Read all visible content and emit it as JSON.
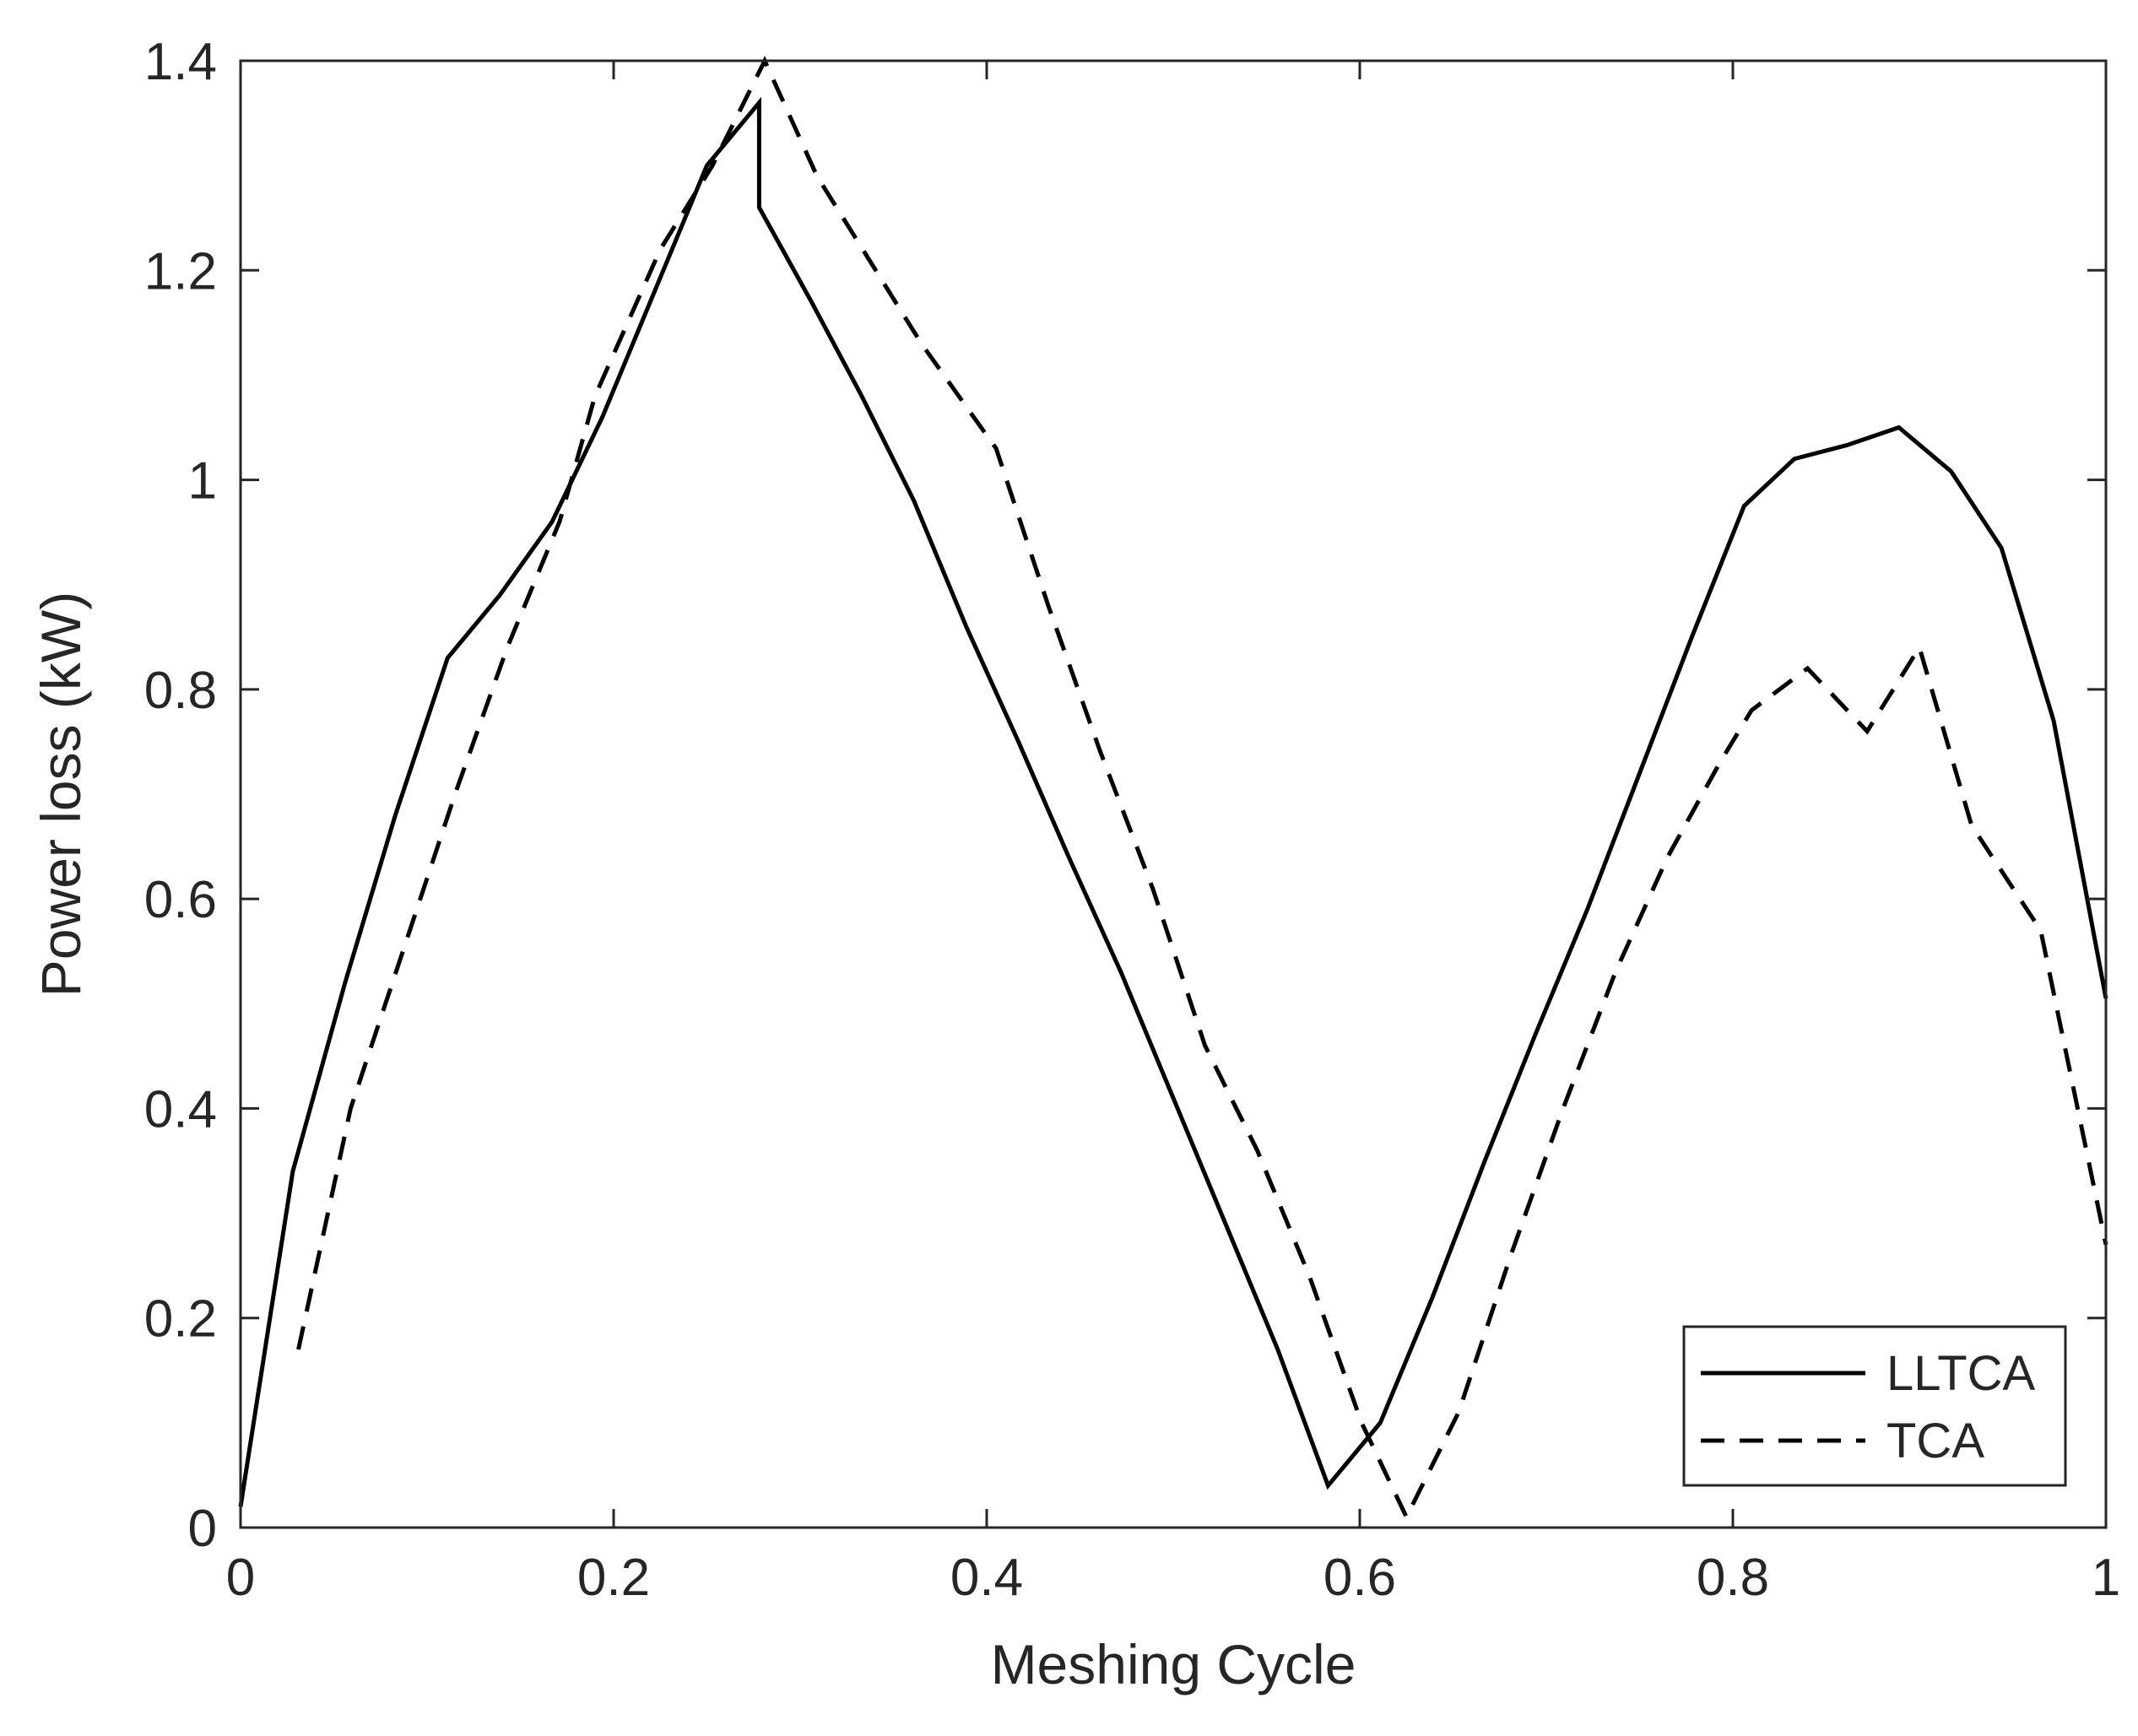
{
  "chart_data": {
    "type": "line",
    "title": "",
    "xlabel": "Meshing Cycle",
    "ylabel": "Power loss (kW)",
    "xlim": [
      0,
      1
    ],
    "ylim": [
      0,
      1.4
    ],
    "xticks": [
      0,
      0.2,
      0.4,
      0.6,
      0.8,
      1
    ],
    "xtick_labels": [
      "0",
      "0.2",
      "0.4",
      "0.6",
      "0.8",
      "1"
    ],
    "yticks": [
      0,
      0.2,
      0.4,
      0.6,
      0.8,
      1,
      1.2,
      1.4
    ],
    "ytick_labels": [
      "0",
      "0.2",
      "0.4",
      "0.6",
      "0.8",
      "1",
      "1.2",
      "1.4"
    ],
    "grid": false,
    "legend_position": "bottom-right",
    "series": [
      {
        "name": "LLTCA",
        "style": "solid",
        "color": "#000000",
        "x": [
          0,
          0.028,
          0.056,
          0.083,
          0.111,
          0.139,
          0.167,
          0.194,
          0.222,
          0.25,
          0.278,
          0.278,
          0.306,
          0.333,
          0.361,
          0.389,
          0.417,
          0.444,
          0.472,
          0.5,
          0.528,
          0.556,
          0.583,
          0.611,
          0.639,
          0.667,
          0.694,
          0.722,
          0.75,
          0.778,
          0.806,
          0.833,
          0.861,
          0.889,
          0.917,
          0.944,
          0.972,
          1.0
        ],
        "y": [
          0.02,
          0.34,
          0.52,
          0.68,
          0.83,
          0.89,
          0.96,
          1.06,
          1.18,
          1.3,
          1.36,
          1.26,
          1.17,
          1.08,
          0.98,
          0.86,
          0.75,
          0.64,
          0.53,
          0.41,
          0.29,
          0.17,
          0.04,
          0.1,
          0.22,
          0.35,
          0.47,
          0.59,
          0.72,
          0.85,
          0.975,
          1.02,
          1.033,
          1.05,
          1.008,
          0.935,
          0.77,
          0.505
        ]
      },
      {
        "name": "TCA",
        "style": "dashed",
        "color": "#000000",
        "x": [
          0.031,
          0.059,
          0.087,
          0.115,
          0.143,
          0.171,
          0.19,
          0.225,
          0.253,
          0.281,
          0.309,
          0.337,
          0.365,
          0.393,
          0.405,
          0.433,
          0.461,
          0.489,
          0.517,
          0.545,
          0.573,
          0.601,
          0.625,
          0.653,
          0.681,
          0.709,
          0.737,
          0.765,
          0.793,
          0.81,
          0.84,
          0.872,
          0.9,
          0.928,
          0.965,
          1.0
        ],
        "y": [
          0.17,
          0.4,
          0.55,
          0.7,
          0.84,
          0.96,
          1.08,
          1.22,
          1.3,
          1.4,
          1.29,
          1.21,
          1.13,
          1.06,
          1.03,
          0.88,
          0.74,
          0.61,
          0.46,
          0.36,
          0.24,
          0.1,
          0.01,
          0.11,
          0.26,
          0.4,
          0.53,
          0.64,
          0.73,
          0.78,
          0.82,
          0.76,
          0.84,
          0.67,
          0.57,
          0.27
        ]
      }
    ]
  }
}
